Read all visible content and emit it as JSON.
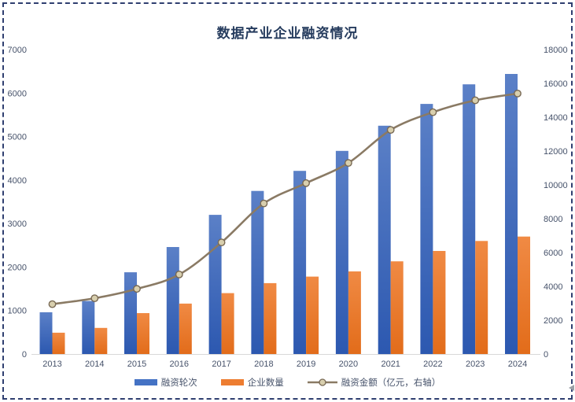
{
  "title": "数据产业企业融资情况",
  "colors": {
    "title": "#263c5e",
    "axis_text": "#46526a",
    "axis_line": "#d8d8d8",
    "selection_border": "#2f3f70",
    "background": "#ffffff"
  },
  "chart_data": {
    "type": "combo-bar-line",
    "title": "数据产业企业融资情况",
    "categories": [
      "2013",
      "2014",
      "2015",
      "2016",
      "2017",
      "2018",
      "2019",
      "2020",
      "2021",
      "2022",
      "2023",
      "2024"
    ],
    "series": [
      {
        "name": "融资轮次",
        "type": "bar",
        "axis": "left",
        "color": "#4472C4",
        "gradient": [
          "#5b80c7",
          "#2c58b0"
        ],
        "values": [
          960,
          1220,
          1880,
          2460,
          3200,
          3750,
          4210,
          4670,
          5250,
          5750,
          6200,
          6440
        ]
      },
      {
        "name": "企业数量",
        "type": "bar",
        "axis": "left",
        "color": "#ED7D31",
        "gradient": [
          "#f08a44",
          "#e26c1a"
        ],
        "values": [
          490,
          600,
          940,
          1160,
          1400,
          1630,
          1780,
          1900,
          2130,
          2370,
          2600,
          2700
        ]
      },
      {
        "name": "融资金额（亿元，右轴）",
        "type": "line",
        "axis": "right",
        "color": "#8a7a64",
        "marker_fill": "#d8cfae",
        "marker_stroke": "#776853",
        "values": [
          2950,
          3300,
          3850,
          4700,
          6600,
          8900,
          10100,
          11300,
          13250,
          14300,
          15000,
          15400
        ]
      }
    ],
    "left_axis": {
      "min": 0,
      "max": 7000,
      "step": 1000,
      "ticks": [
        0,
        1000,
        2000,
        3000,
        4000,
        5000,
        6000,
        7000
      ]
    },
    "right_axis": {
      "min": 0,
      "max": 18000,
      "step": 2000,
      "ticks": [
        0,
        2000,
        4000,
        6000,
        8000,
        10000,
        12000,
        14000,
        16000,
        18000
      ]
    },
    "grid": false,
    "legend_position": "bottom"
  }
}
